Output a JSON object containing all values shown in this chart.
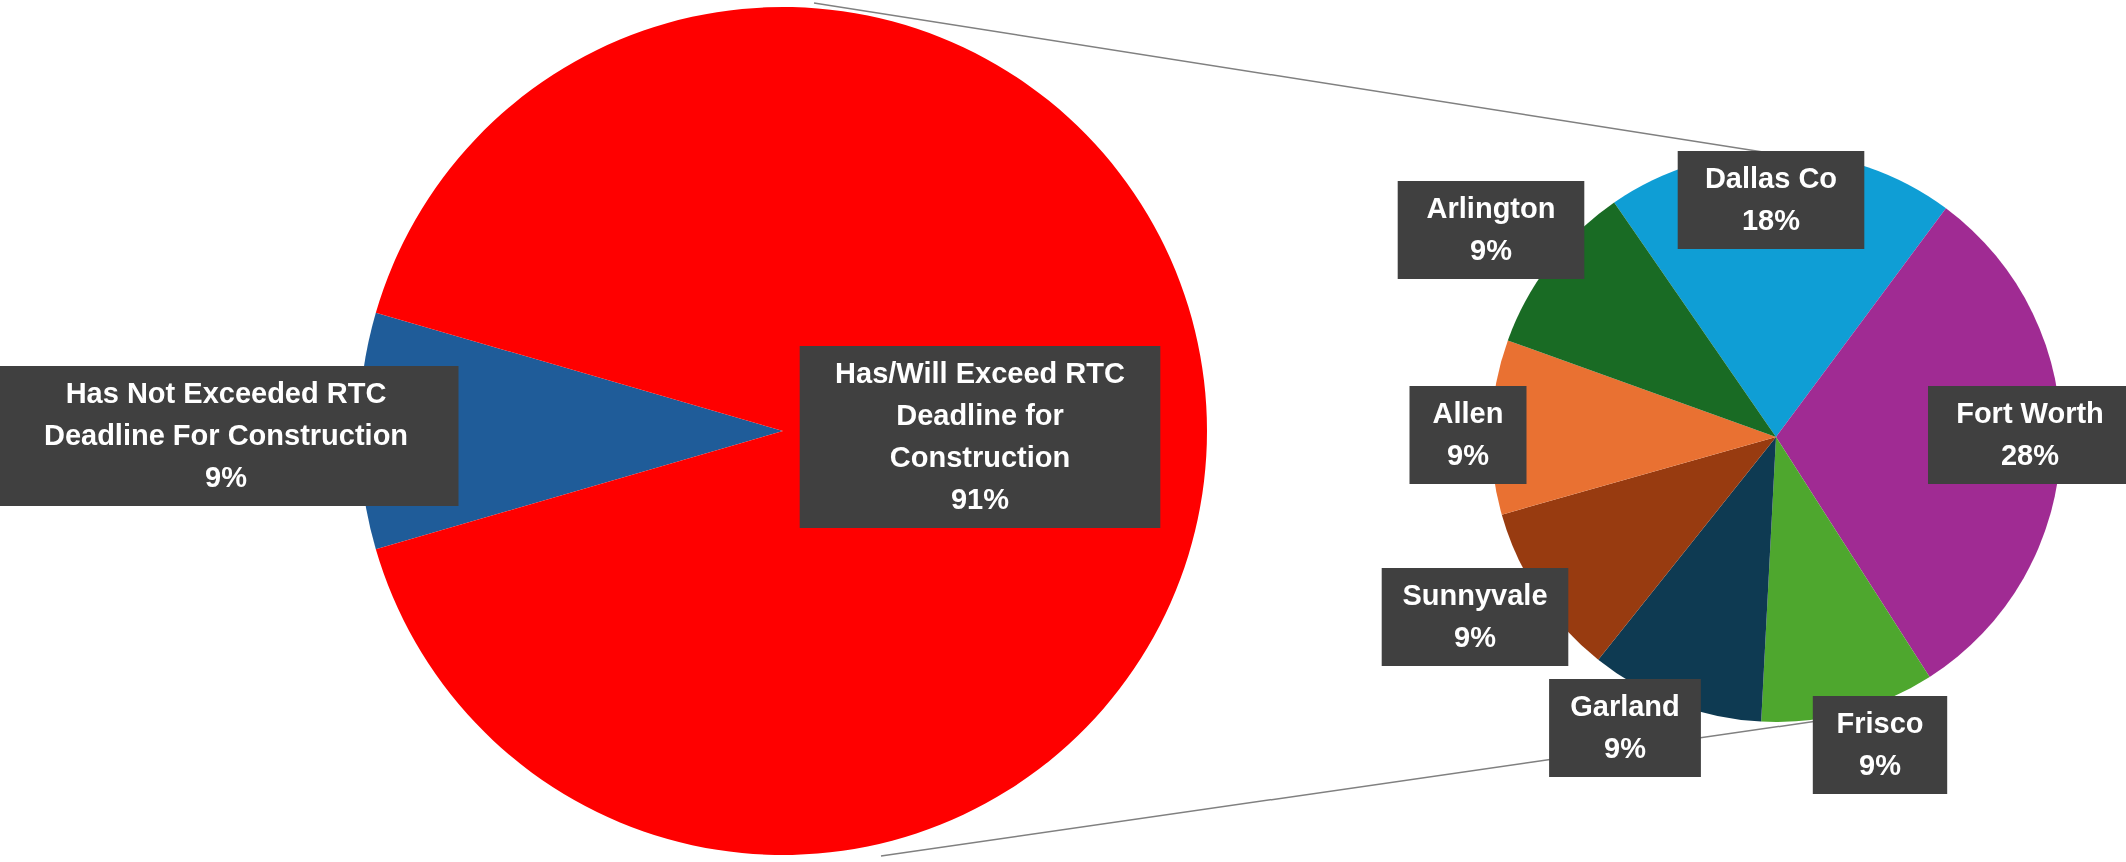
{
  "chart_data": [
    {
      "type": "pie",
      "categories": [
        "Has Not Exceeded RTC Deadline For Construction",
        "Has/Will Exceed RTC Deadline for Construction"
      ],
      "values": [
        9,
        91
      ],
      "value_labels": [
        "9%",
        "91%"
      ],
      "colors": [
        "#1f5c99",
        "#ff0000"
      ]
    },
    {
      "type": "pie",
      "categories": [
        "Dallas Co",
        "Fort Worth",
        "Frisco",
        "Garland",
        "Sunnyvale",
        "Allen",
        "Arlington"
      ],
      "values": [
        18,
        28,
        9,
        9,
        9,
        9,
        9
      ],
      "value_labels": [
        "18%",
        "28%",
        "9%",
        "9%",
        "9%",
        "9%",
        "9%"
      ],
      "colors": [
        "#0f9ed5",
        "#a02b93",
        "#4ea72e",
        "#0e3a52",
        "#983b10",
        "#e97132",
        "#196b24"
      ]
    }
  ]
}
